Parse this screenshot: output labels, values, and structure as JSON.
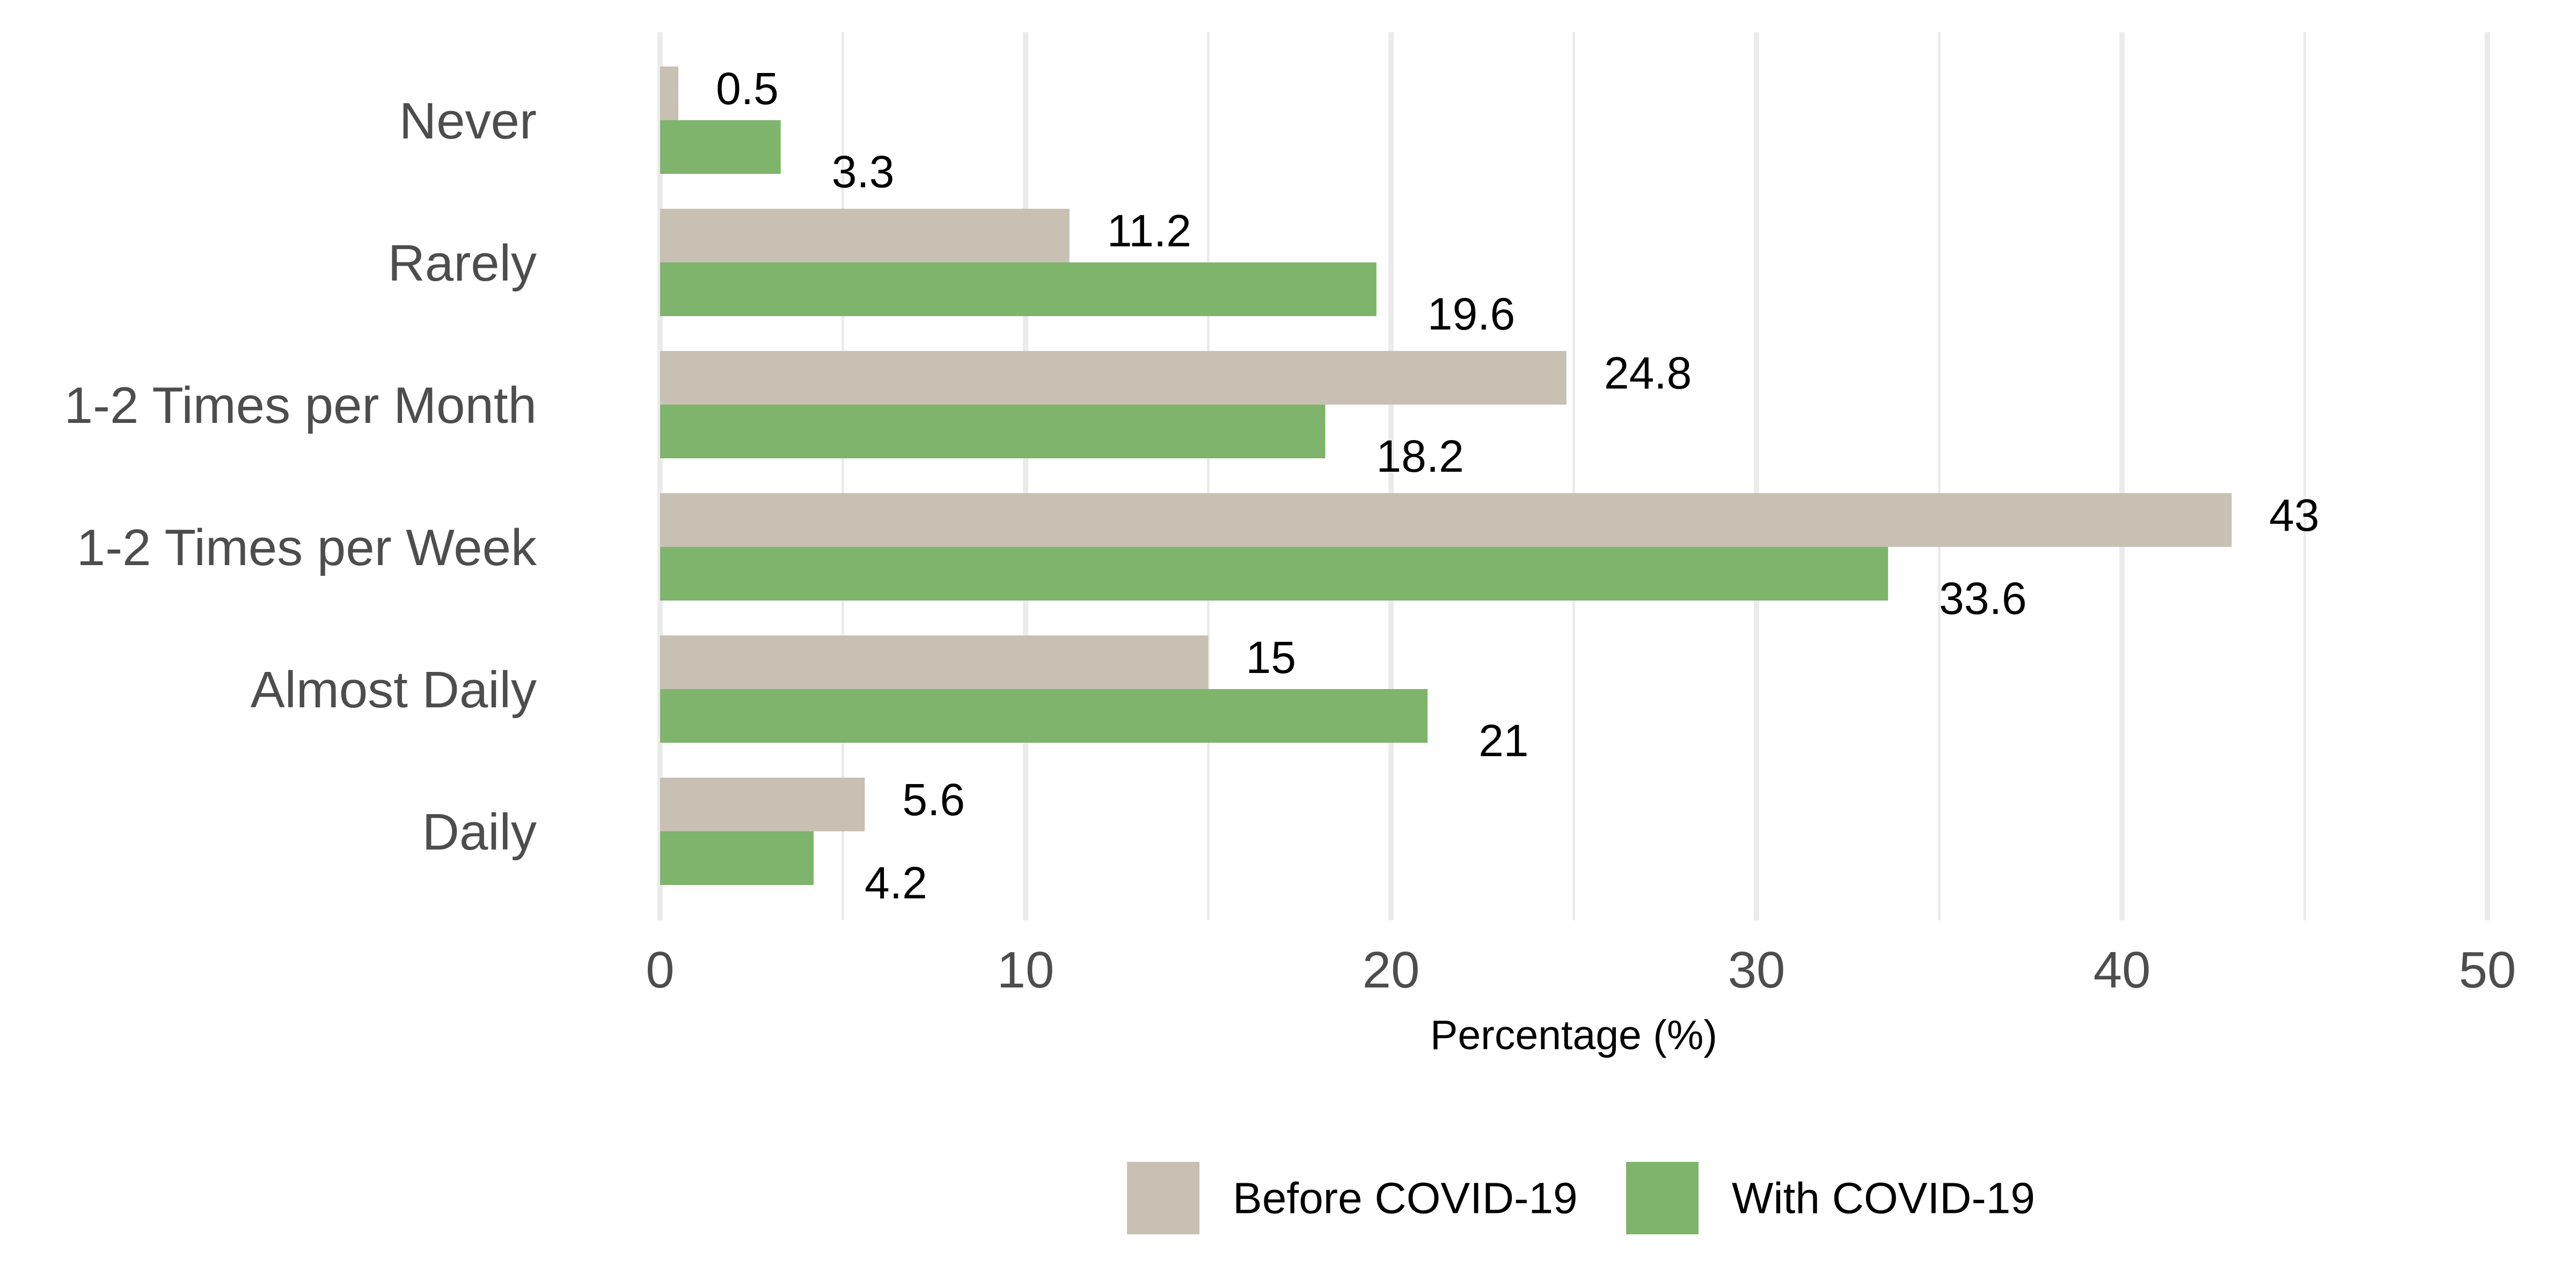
{
  "chart_data": {
    "type": "bar",
    "orientation": "horizontal",
    "categories": [
      "Never",
      "Rarely",
      "1-2 Times per Month",
      "1-2 Times per Week",
      "Almost Daily",
      "Daily"
    ],
    "series": [
      {
        "name": "Before COVID-19",
        "color": "#c7c0b3",
        "values": [
          0.5,
          11.2,
          24.8,
          43,
          15,
          5.6
        ],
        "labels": [
          "0.5",
          "11.2",
          "24.8",
          "43",
          "15",
          "5.6"
        ]
      },
      {
        "name": "With COVID-19",
        "color": "#7eb46b",
        "values": [
          3.3,
          19.6,
          18.2,
          33.6,
          21,
          4.2
        ],
        "labels": [
          "3.3",
          "19.6",
          "18.2",
          "33.6",
          "21",
          "4.2"
        ]
      }
    ],
    "xlabel": "Percentage (%)",
    "ylabel": "",
    "xlim": [
      0,
      50
    ],
    "ticks": [
      0,
      10,
      20,
      30,
      40,
      50
    ],
    "tick_labels": [
      "0",
      "10",
      "20",
      "30",
      "40",
      "50"
    ],
    "grid": true,
    "legend_position": "bottom"
  }
}
